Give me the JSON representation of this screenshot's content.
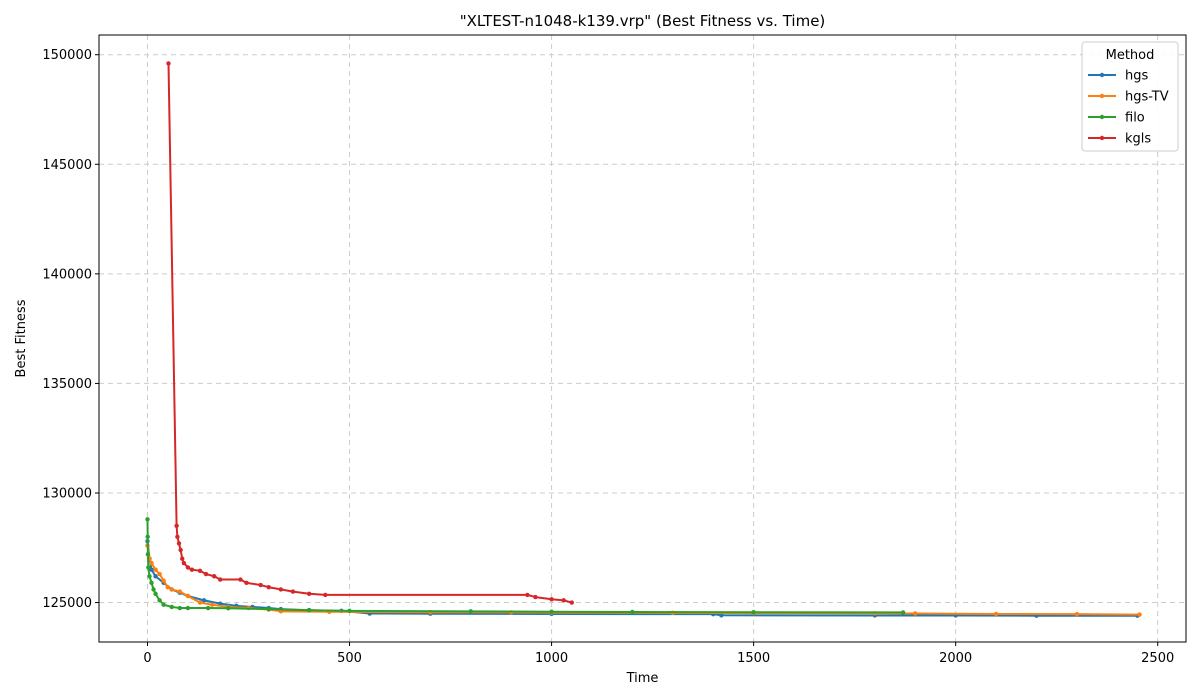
{
  "chart_data": {
    "type": "line",
    "title": "\"XLTEST-n1048-k139.vrp\" (Best Fitness vs. Time)",
    "xlabel": "Time",
    "ylabel": "Best Fitness",
    "xlim": [
      -120,
      2570
    ],
    "ylim": [
      123200,
      150900
    ],
    "xticks": [
      0,
      500,
      1000,
      1500,
      2000,
      2500
    ],
    "yticks": [
      125000,
      130000,
      135000,
      140000,
      145000,
      150000
    ],
    "grid": true,
    "legend": {
      "title": "Method",
      "position": "top-right"
    },
    "series": [
      {
        "name": "hgs",
        "color": "#1f77b4",
        "points": [
          [
            0,
            127800
          ],
          [
            5,
            127000
          ],
          [
            10,
            126500
          ],
          [
            20,
            126200
          ],
          [
            40,
            125900
          ],
          [
            60,
            125600
          ],
          [
            80,
            125450
          ],
          [
            100,
            125300
          ],
          [
            140,
            125100
          ],
          [
            180,
            124950
          ],
          [
            220,
            124850
          ],
          [
            260,
            124800
          ],
          [
            300,
            124750
          ],
          [
            330,
            124700
          ],
          [
            400,
            124650
          ],
          [
            480,
            124620
          ],
          [
            550,
            124500
          ],
          [
            700,
            124490
          ],
          [
            1000,
            124480
          ],
          [
            1400,
            124470
          ],
          [
            1420,
            124420
          ],
          [
            1800,
            124410
          ],
          [
            2000,
            124410
          ],
          [
            2200,
            124400
          ],
          [
            2450,
            124400
          ]
        ]
      },
      {
        "name": "hgs-TV",
        "color": "#ff7f0e",
        "points": [
          [
            0,
            127600
          ],
          [
            5,
            127000
          ],
          [
            10,
            126800
          ],
          [
            20,
            126500
          ],
          [
            30,
            126300
          ],
          [
            40,
            126000
          ],
          [
            50,
            125700
          ],
          [
            60,
            125600
          ],
          [
            80,
            125500
          ],
          [
            100,
            125300
          ],
          [
            130,
            125000
          ],
          [
            160,
            124900
          ],
          [
            200,
            124800
          ],
          [
            250,
            124750
          ],
          [
            300,
            124680
          ],
          [
            330,
            124600
          ],
          [
            450,
            124580
          ],
          [
            700,
            124560
          ],
          [
            900,
            124550
          ],
          [
            1000,
            124540
          ],
          [
            1300,
            124530
          ],
          [
            1500,
            124520
          ],
          [
            1800,
            124510
          ],
          [
            1900,
            124500
          ],
          [
            2100,
            124480
          ],
          [
            2300,
            124470
          ],
          [
            2455,
            124450
          ]
        ]
      },
      {
        "name": "filo",
        "color": "#2ca02c",
        "points": [
          [
            0,
            128800
          ],
          [
            0.5,
            128000
          ],
          [
            1,
            127200
          ],
          [
            2,
            126600
          ],
          [
            5,
            126200
          ],
          [
            10,
            125900
          ],
          [
            15,
            125600
          ],
          [
            20,
            125400
          ],
          [
            30,
            125100
          ],
          [
            40,
            124900
          ],
          [
            60,
            124800
          ],
          [
            80,
            124750
          ],
          [
            100,
            124750
          ],
          [
            150,
            124750
          ],
          [
            200,
            124740
          ],
          [
            300,
            124700
          ],
          [
            400,
            124650
          ],
          [
            500,
            124620
          ],
          [
            800,
            124600
          ],
          [
            1000,
            124580
          ],
          [
            1200,
            124570
          ],
          [
            1500,
            124560
          ],
          [
            1870,
            124550
          ]
        ]
      },
      {
        "name": "kgls",
        "color": "#d62728",
        "points": [
          [
            52,
            149600
          ],
          [
            72,
            128500
          ],
          [
            74,
            128000
          ],
          [
            78,
            127700
          ],
          [
            82,
            127400
          ],
          [
            86,
            127000
          ],
          [
            90,
            126800
          ],
          [
            100,
            126600
          ],
          [
            110,
            126500
          ],
          [
            130,
            126450
          ],
          [
            145,
            126300
          ],
          [
            165,
            126200
          ],
          [
            180,
            126050
          ],
          [
            230,
            126050
          ],
          [
            245,
            125900
          ],
          [
            280,
            125800
          ],
          [
            300,
            125700
          ],
          [
            330,
            125600
          ],
          [
            360,
            125500
          ],
          [
            400,
            125400
          ],
          [
            440,
            125350
          ],
          [
            940,
            125350
          ],
          [
            960,
            125250
          ],
          [
            1000,
            125150
          ],
          [
            1030,
            125100
          ],
          [
            1050,
            125000
          ]
        ]
      }
    ]
  }
}
